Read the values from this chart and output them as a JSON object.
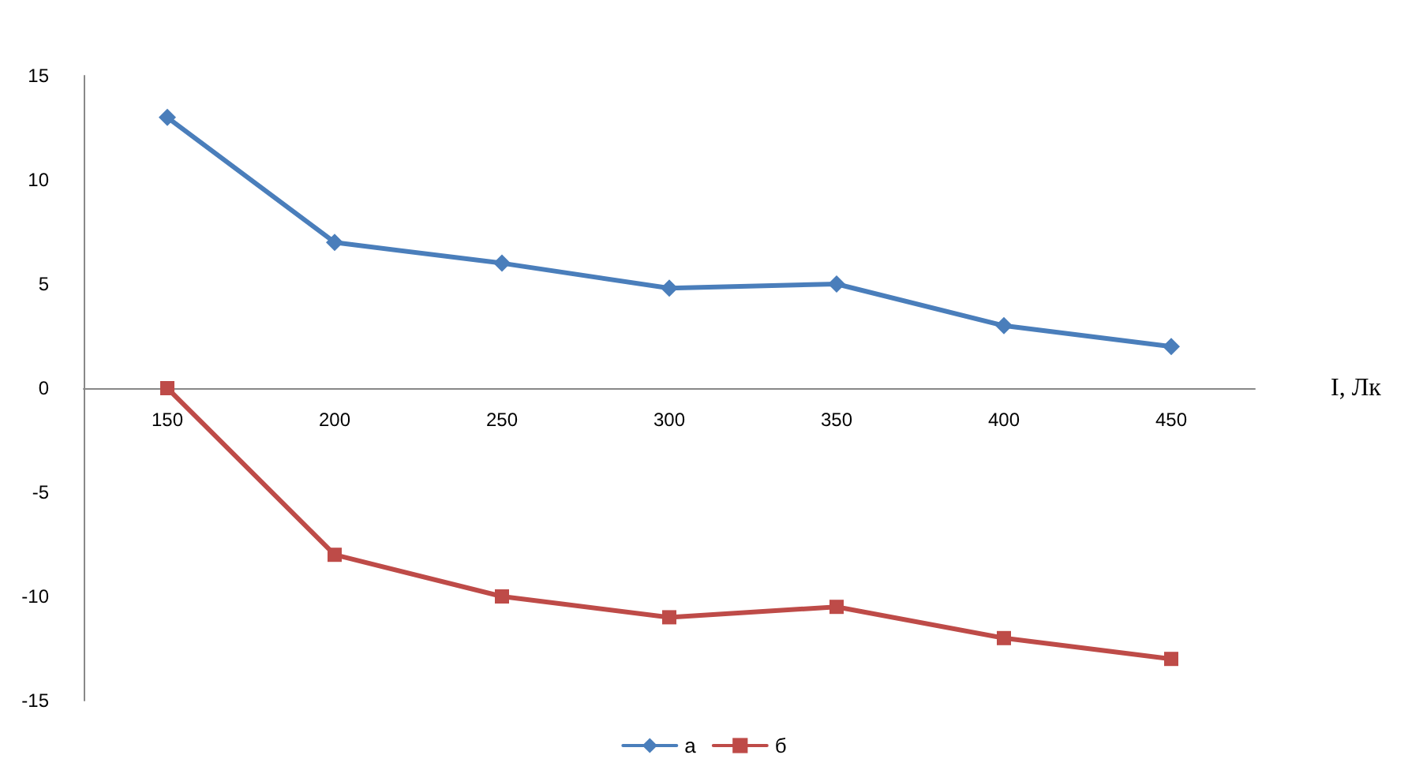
{
  "chart_data": {
    "type": "line",
    "xlabel": "I, Лк",
    "categories": [
      "150",
      "200",
      "250",
      "300",
      "350",
      "400",
      "450"
    ],
    "series": [
      {
        "name": "а",
        "color": "#4a7ebb",
        "marker": "diamond",
        "values": [
          13,
          7,
          6,
          4.8,
          5,
          3,
          2
        ]
      },
      {
        "name": "б",
        "color": "#be4b48",
        "marker": "square",
        "values": [
          0,
          -8,
          -10,
          -11,
          -10.5,
          -12,
          -13
        ]
      }
    ],
    "ylim": [
      -15,
      15
    ],
    "yticks": [
      -15,
      -10,
      -5,
      0,
      5,
      10,
      15
    ],
    "legend": "bottom",
    "line_style": "solid"
  }
}
